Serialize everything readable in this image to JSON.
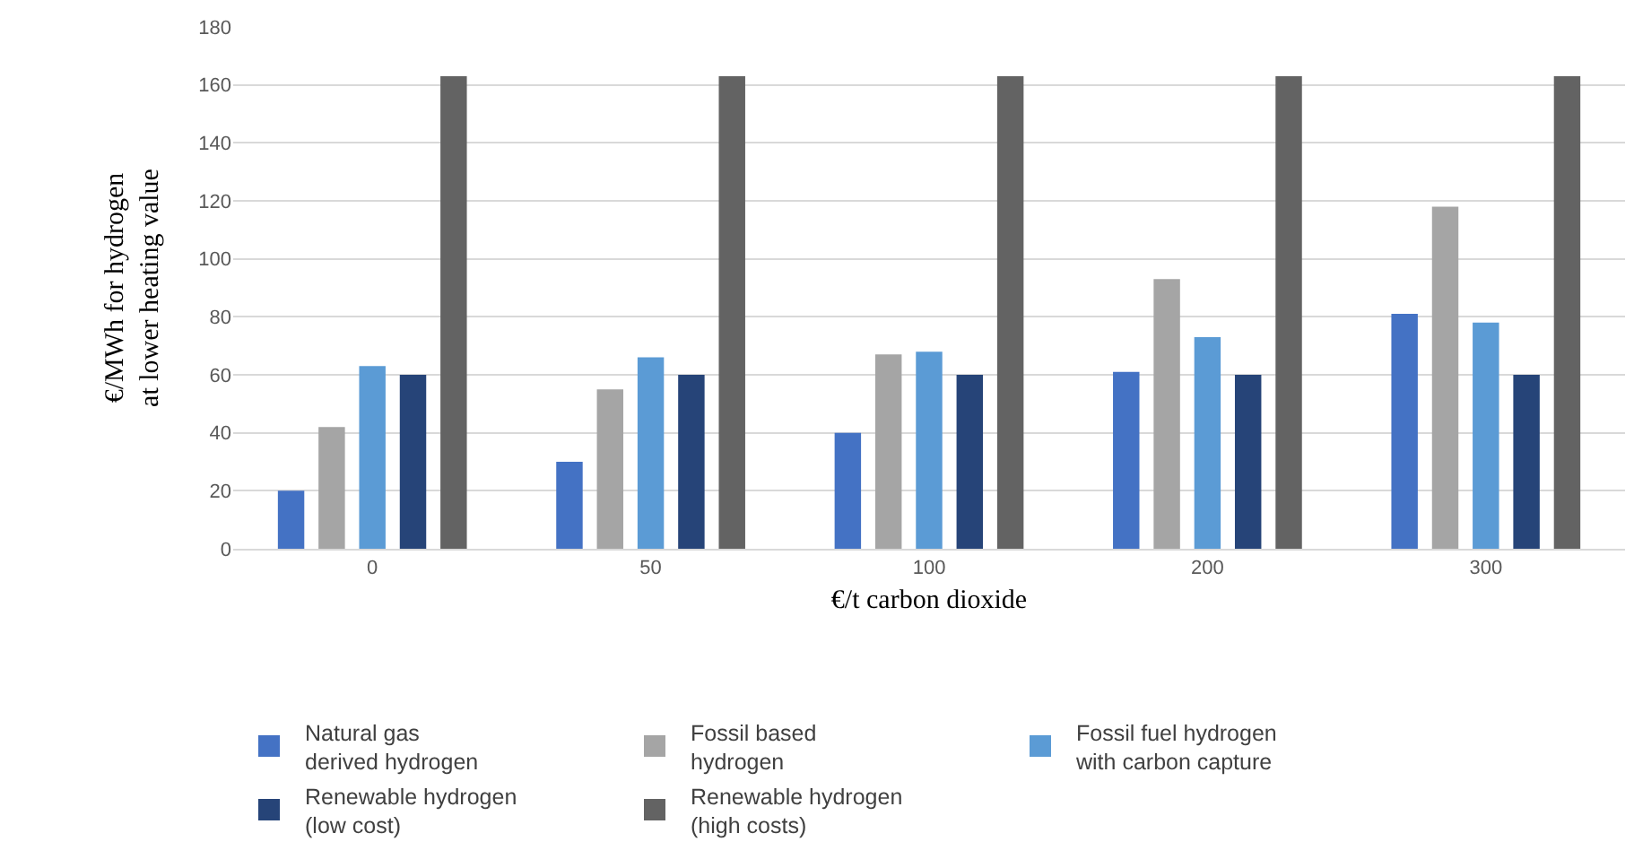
{
  "chart_data": {
    "type": "bar",
    "xlabel": "€/t carbon dioxide",
    "ylabel": "€/MWh for hydrogen\nat lower heating value",
    "categories": [
      "0",
      "50",
      "100",
      "200",
      "300"
    ],
    "series": [
      {
        "name": "Natural gas derived hydrogen",
        "color": "#4472c4",
        "values": [
          20,
          30,
          40,
          61,
          81
        ]
      },
      {
        "name": "Fossil based hydrogen",
        "color": "#a5a5a5",
        "values": [
          42,
          55,
          67,
          93,
          118
        ]
      },
      {
        "name": "Fossil fuel hydrogen with carbon capture",
        "color": "#5b9bd5",
        "values": [
          63,
          66,
          68,
          73,
          78
        ]
      },
      {
        "name": "Renewable hydrogen (low cost)",
        "color": "#264478",
        "values": [
          60,
          60,
          60,
          60,
          60
        ]
      },
      {
        "name": "Renewable hydrogen (high costs)",
        "color": "#636363",
        "values": [
          163,
          163,
          163,
          163,
          163
        ]
      }
    ],
    "ylim": [
      0,
      180
    ],
    "yticks": [
      0,
      20,
      40,
      60,
      80,
      100,
      120,
      140,
      160,
      180
    ],
    "grid": "y",
    "legend": "bottom"
  }
}
